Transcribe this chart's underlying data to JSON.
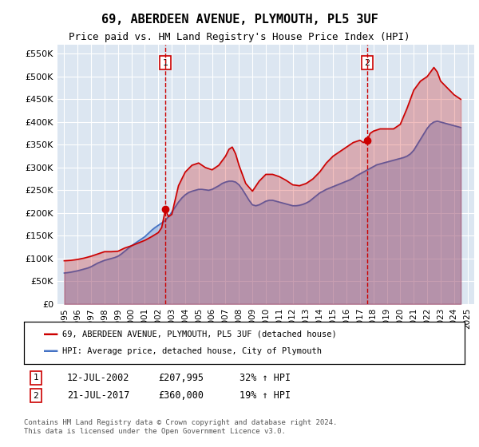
{
  "title": "69, ABERDEEN AVENUE, PLYMOUTH, PL5 3UF",
  "subtitle": "Price paid vs. HM Land Registry's House Price Index (HPI)",
  "xlabel": "",
  "ylabel": "",
  "ylim": [
    0,
    570000
  ],
  "yticks": [
    0,
    50000,
    100000,
    150000,
    200000,
    250000,
    300000,
    350000,
    400000,
    450000,
    500000,
    550000
  ],
  "ytick_labels": [
    "£0",
    "£50K",
    "£100K",
    "£150K",
    "£200K",
    "£250K",
    "£300K",
    "£350K",
    "£400K",
    "£450K",
    "£500K",
    "£550K"
  ],
  "xlim_start": 1994.5,
  "xlim_end": 2025.5,
  "background_color": "#dce6f1",
  "plot_bg_color": "#dce6f1",
  "line1_color": "#cc0000",
  "line2_color": "#4472c4",
  "marker1_color": "#cc0000",
  "marker2_color": "#4472c4",
  "vline_color": "#cc0000",
  "vline_style": "--",
  "sale1_year": 2002.53,
  "sale1_price": 207995,
  "sale2_year": 2017.55,
  "sale2_price": 360000,
  "legend_label1": "69, ABERDEEN AVENUE, PLYMOUTH, PL5 3UF (detached house)",
  "legend_label2": "HPI: Average price, detached house, City of Plymouth",
  "table_row1": [
    "1",
    "12-JUL-2002",
    "£207,995",
    "32% ↑ HPI"
  ],
  "table_row2": [
    "2",
    "21-JUL-2017",
    "£360,000",
    "19% ↑ HPI"
  ],
  "footer": "Contains HM Land Registry data © Crown copyright and database right 2024.\nThis data is licensed under the Open Government Licence v3.0.",
  "hpi_years": [
    1995,
    1995.25,
    1995.5,
    1995.75,
    1996,
    1996.25,
    1996.5,
    1996.75,
    1997,
    1997.25,
    1997.5,
    1997.75,
    1998,
    1998.25,
    1998.5,
    1998.75,
    1999,
    1999.25,
    1999.5,
    1999.75,
    2000,
    2000.25,
    2000.5,
    2000.75,
    2001,
    2001.25,
    2001.5,
    2001.75,
    2002,
    2002.25,
    2002.5,
    2002.75,
    2003,
    2003.25,
    2003.5,
    2003.75,
    2004,
    2004.25,
    2004.5,
    2004.75,
    2005,
    2005.25,
    2005.5,
    2005.75,
    2006,
    2006.25,
    2006.5,
    2006.75,
    2007,
    2007.25,
    2007.5,
    2007.75,
    2008,
    2008.25,
    2008.5,
    2008.75,
    2009,
    2009.25,
    2009.5,
    2009.75,
    2010,
    2010.25,
    2010.5,
    2010.75,
    2011,
    2011.25,
    2011.5,
    2011.75,
    2012,
    2012.25,
    2012.5,
    2012.75,
    2013,
    2013.25,
    2013.5,
    2013.75,
    2014,
    2014.25,
    2014.5,
    2014.75,
    2015,
    2015.25,
    2015.5,
    2015.75,
    2016,
    2016.25,
    2016.5,
    2016.75,
    2017,
    2017.25,
    2017.5,
    2017.75,
    2018,
    2018.25,
    2018.5,
    2018.75,
    2019,
    2019.25,
    2019.5,
    2019.75,
    2020,
    2020.25,
    2020.5,
    2020.75,
    2021,
    2021.25,
    2021.5,
    2021.75,
    2022,
    2022.25,
    2022.5,
    2022.75,
    2023,
    2023.25,
    2023.5,
    2023.75,
    2024,
    2024.25,
    2024.5
  ],
  "hpi_values": [
    68000,
    69000,
    70000,
    71500,
    73000,
    75000,
    77000,
    79000,
    82000,
    86000,
    90000,
    93000,
    96000,
    98000,
    100000,
    102000,
    105000,
    110000,
    116000,
    122000,
    128000,
    133000,
    138000,
    143000,
    148000,
    155000,
    162000,
    168000,
    173000,
    178000,
    183000,
    192000,
    202000,
    213000,
    224000,
    233000,
    240000,
    245000,
    248000,
    250000,
    252000,
    252000,
    251000,
    250000,
    252000,
    256000,
    260000,
    265000,
    268000,
    270000,
    270000,
    268000,
    262000,
    252000,
    240000,
    228000,
    218000,
    216000,
    218000,
    222000,
    226000,
    228000,
    228000,
    226000,
    224000,
    222000,
    220000,
    218000,
    216000,
    216000,
    217000,
    219000,
    222000,
    226000,
    232000,
    238000,
    244000,
    248000,
    252000,
    255000,
    258000,
    261000,
    264000,
    267000,
    270000,
    273000,
    277000,
    282000,
    286000,
    290000,
    294000,
    298000,
    302000,
    306000,
    308000,
    310000,
    312000,
    314000,
    316000,
    318000,
    320000,
    322000,
    325000,
    330000,
    338000,
    350000,
    362000,
    374000,
    386000,
    395000,
    400000,
    402000,
    400000,
    398000,
    396000,
    394000,
    392000,
    390000,
    388000
  ],
  "property_years": [
    1995,
    1995.5,
    1996,
    1996.5,
    1997,
    1997.5,
    1998,
    1998.5,
    1999,
    1999.5,
    2000,
    2000.5,
    2001,
    2001.5,
    2002,
    2002.25,
    2002.53,
    2002.75,
    2003,
    2003.5,
    2004,
    2004.5,
    2005,
    2005.5,
    2006,
    2006.5,
    2007,
    2007.25,
    2007.5,
    2007.75,
    2008,
    2008.5,
    2009,
    2009.5,
    2010,
    2010.5,
    2011,
    2011.5,
    2012,
    2012.5,
    2013,
    2013.5,
    2014,
    2014.5,
    2015,
    2015.5,
    2016,
    2016.5,
    2017,
    2017.25,
    2017.55,
    2017.75,
    2018,
    2018.5,
    2019,
    2019.5,
    2020,
    2020.5,
    2021,
    2021.5,
    2022,
    2022.25,
    2022.5,
    2022.75,
    2023,
    2023.5,
    2024,
    2024.25,
    2024.5
  ],
  "property_values": [
    95000,
    96000,
    98000,
    101000,
    105000,
    110000,
    115000,
    115000,
    116000,
    123000,
    128000,
    134000,
    140000,
    148000,
    157000,
    168000,
    207995,
    192000,
    197000,
    260000,
    290000,
    305000,
    310000,
    300000,
    295000,
    305000,
    325000,
    340000,
    345000,
    330000,
    305000,
    265000,
    248000,
    270000,
    285000,
    285000,
    280000,
    272000,
    262000,
    260000,
    265000,
    275000,
    290000,
    310000,
    325000,
    335000,
    345000,
    355000,
    360000,
    355000,
    360000,
    375000,
    380000,
    385000,
    385000,
    385000,
    395000,
    430000,
    470000,
    490000,
    500000,
    510000,
    520000,
    510000,
    490000,
    475000,
    460000,
    455000,
    450000
  ]
}
